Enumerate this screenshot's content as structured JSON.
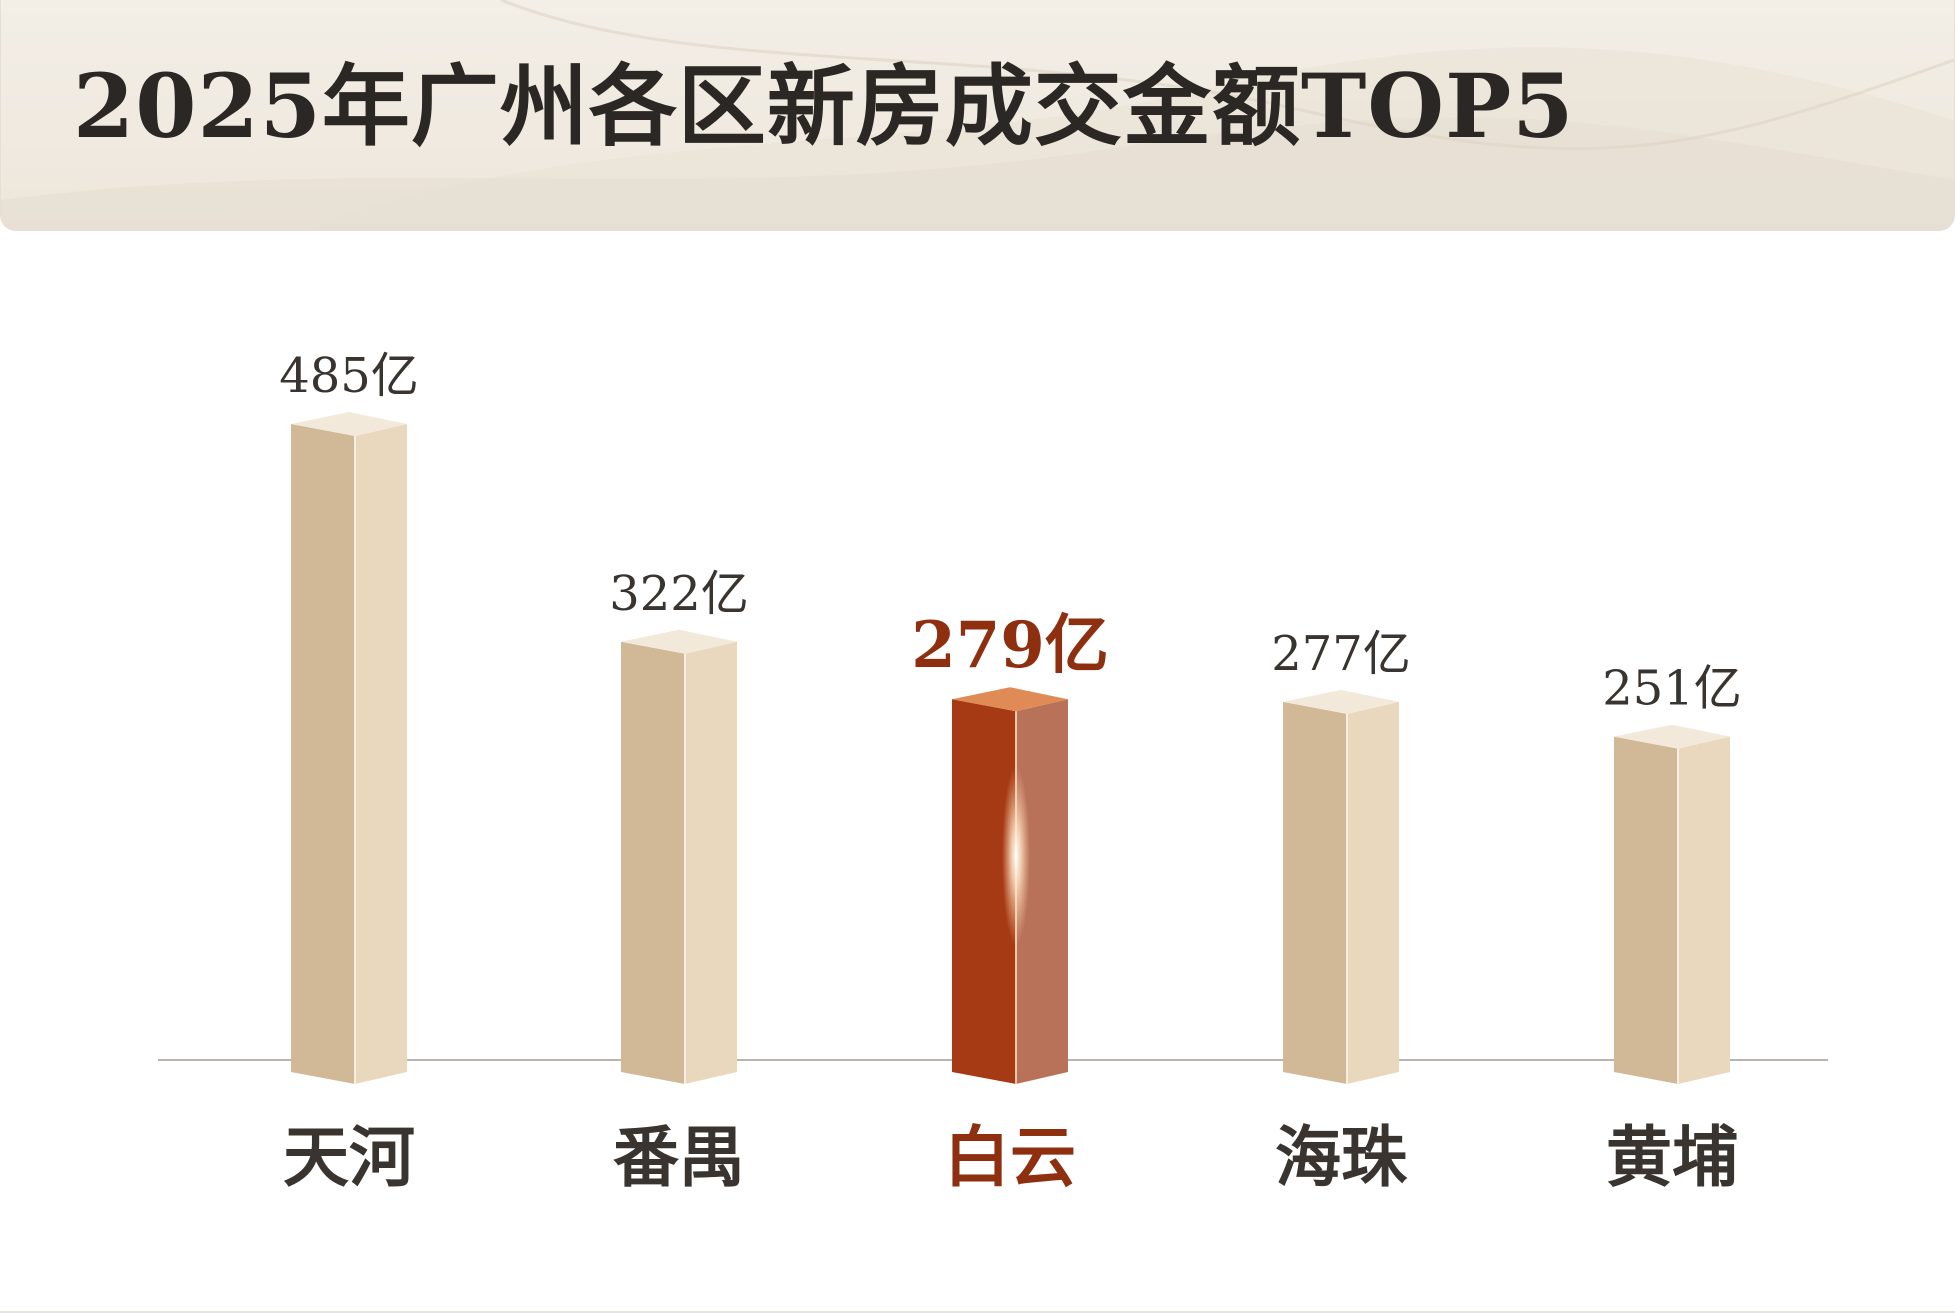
{
  "title": "2025年广州各区新房成交金额TOP5",
  "colors": {
    "bar_front": "#d1b897",
    "bar_side": "#e9d8bd",
    "bar_top": "#f3e9da",
    "highlight_front": "#a63a15",
    "highlight_side": "#b8725a",
    "highlight_top": "#e08a55",
    "highlight_text": "#8e2f10",
    "text": "#3a3430",
    "baseline": "#b9b4ae"
  },
  "chart_data": {
    "type": "bar",
    "title": "2025年广州各区新房成交金额TOP5",
    "categories": [
      "天河",
      "番禺",
      "白云",
      "海珠",
      "黄埔"
    ],
    "values": [
      485,
      322,
      279,
      277,
      251
    ],
    "labels": [
      "485亿",
      "322亿",
      "279亿",
      "277亿",
      "251亿"
    ],
    "highlight_index": 2,
    "xlabel": "",
    "ylabel": "",
    "grid": false
  }
}
